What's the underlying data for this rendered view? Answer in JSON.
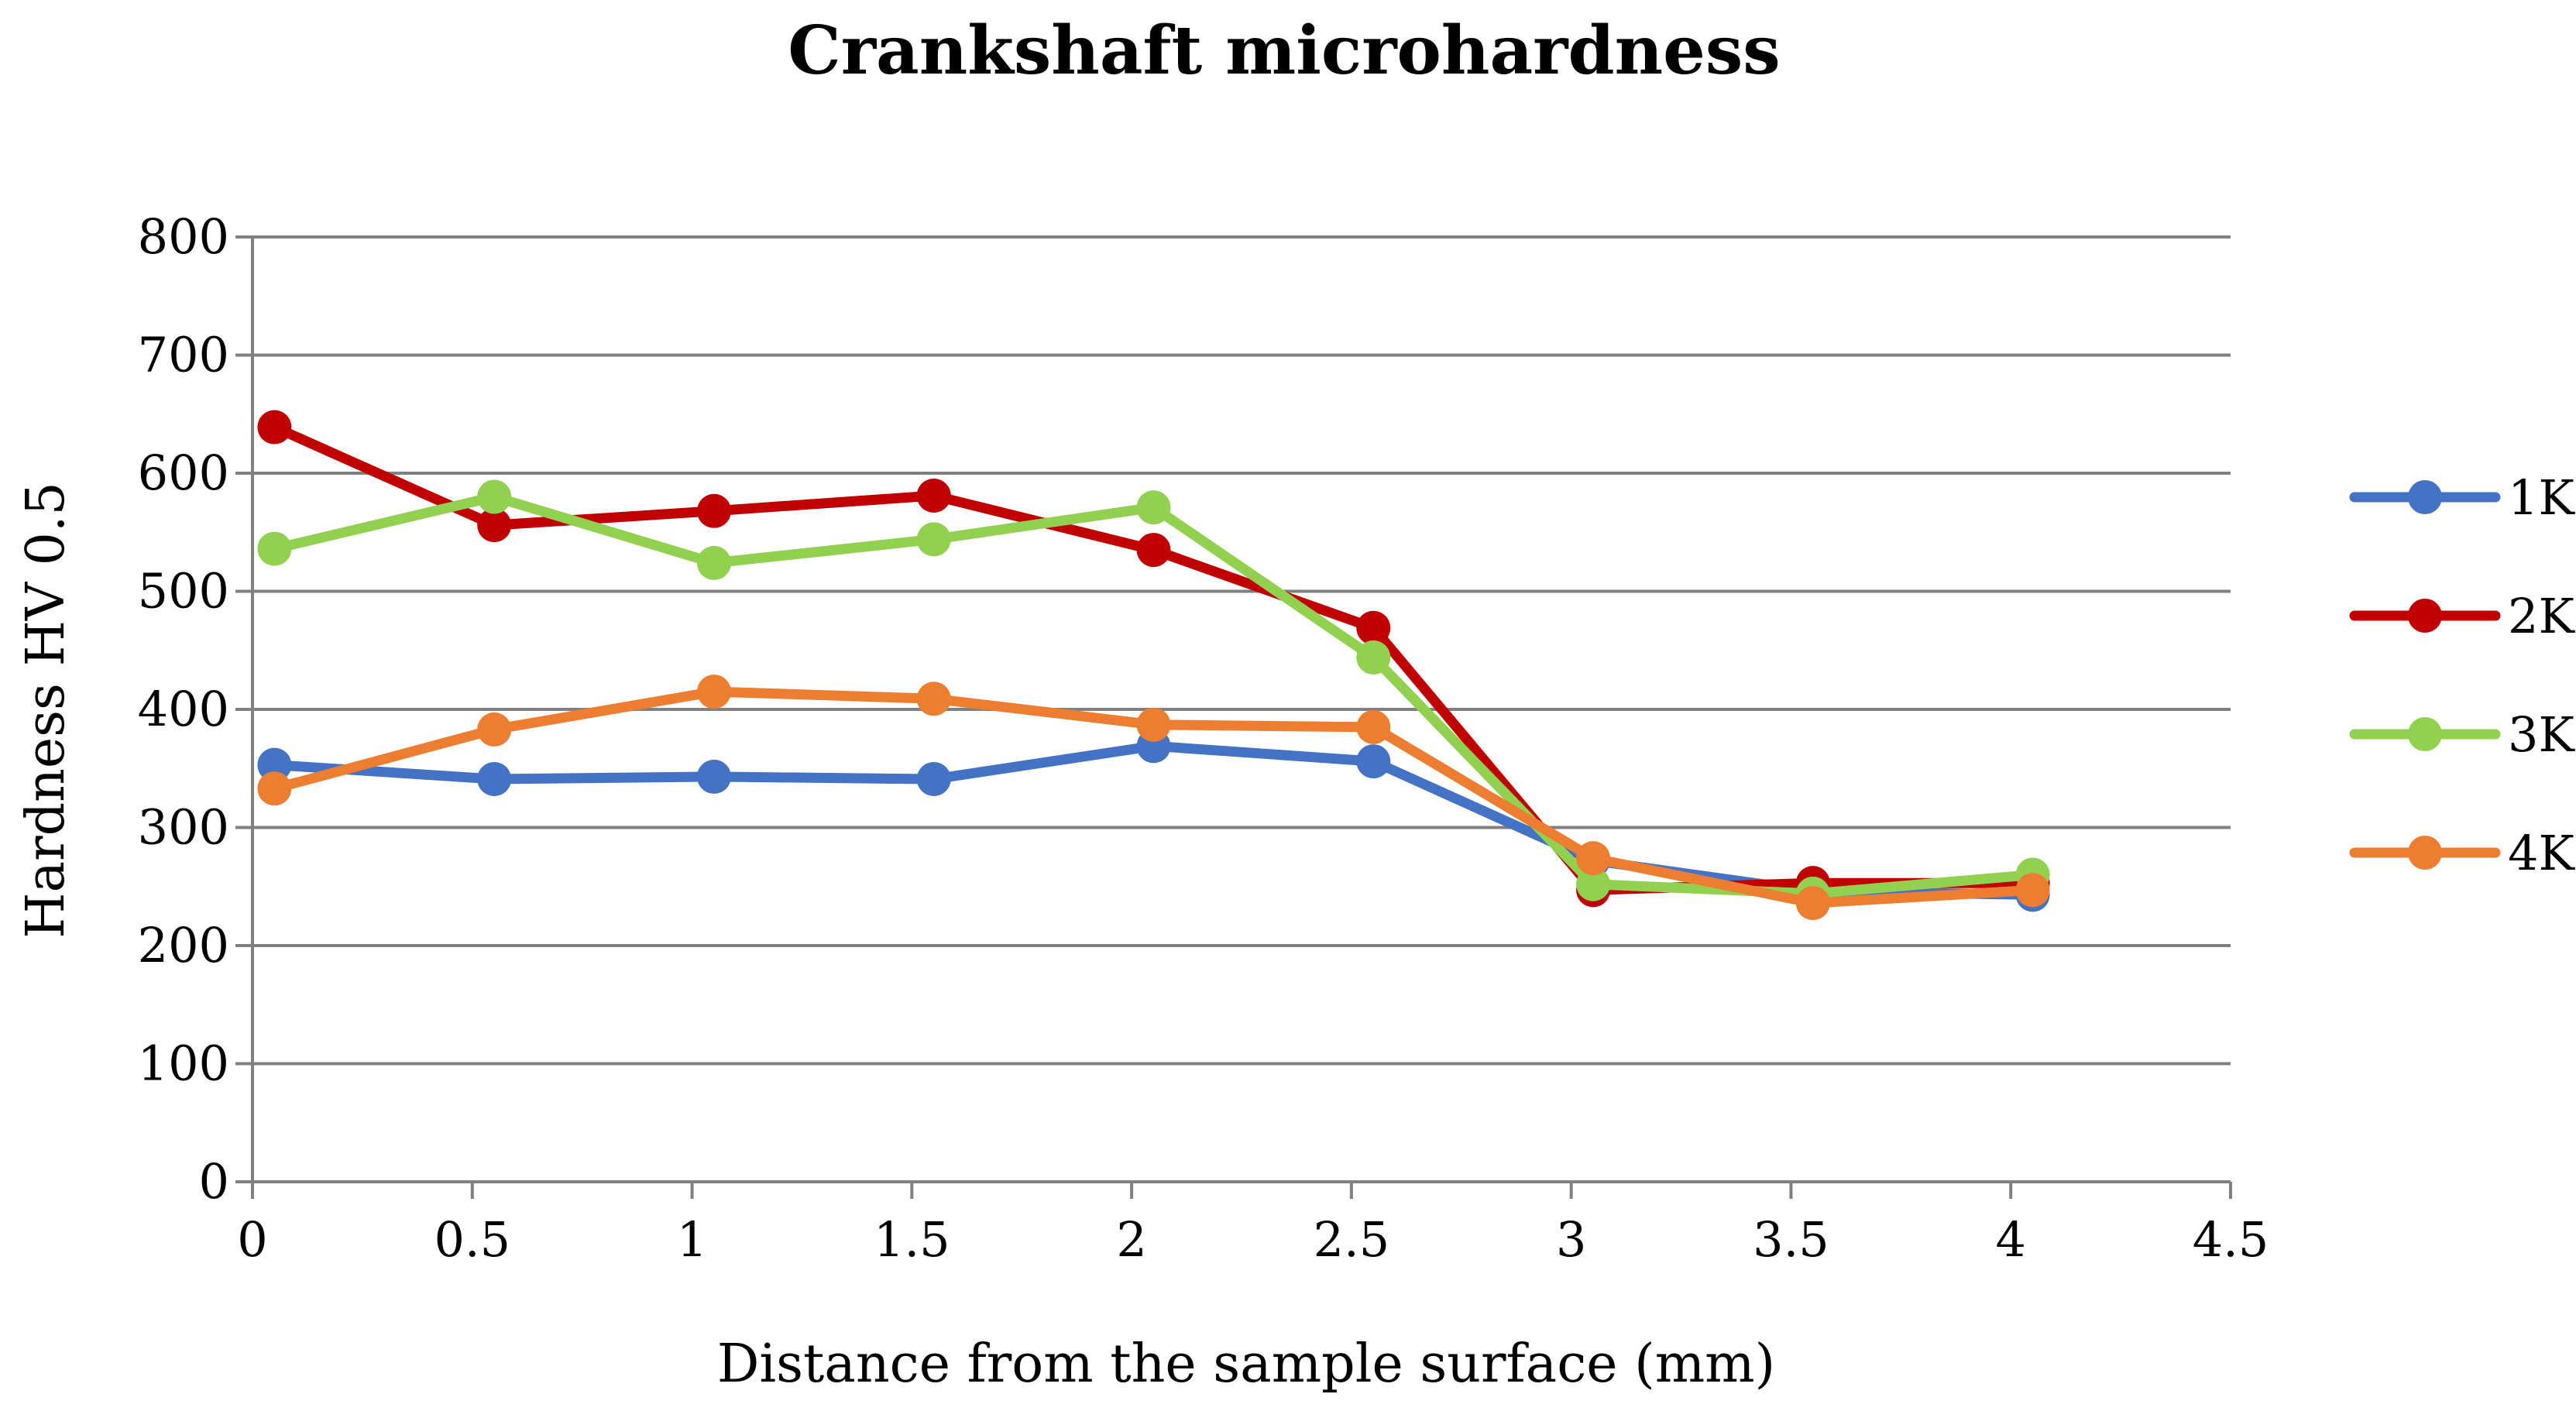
{
  "chart_data": {
    "type": "line",
    "title": "Crankshaft microhardness",
    "xlabel": "Distance from the sample surface (mm)",
    "ylabel": "Hardness HV 0.5",
    "xlim": [
      0,
      4.5
    ],
    "ylim": [
      0,
      800
    ],
    "xticks": [
      0,
      0.5,
      1,
      1.5,
      2,
      2.5,
      3,
      3.5,
      4,
      4.5
    ],
    "xtick_labels": [
      "0",
      "0.5",
      "1",
      "1.5",
      "2",
      "2.5",
      "3",
      "3.5",
      "4",
      "4.5"
    ],
    "yticks": [
      0,
      100,
      200,
      300,
      400,
      500,
      600,
      700,
      800
    ],
    "ytick_labels": [
      "0",
      "100",
      "200",
      "300",
      "400",
      "500",
      "600",
      "700",
      "800"
    ],
    "grid": "horizontal",
    "legend_position": "right",
    "x": [
      0.05,
      0.55,
      1.05,
      1.55,
      2.05,
      2.55,
      3.05,
      3.55,
      4.05
    ],
    "series": [
      {
        "name": "1K",
        "color": "#4472C4",
        "values": [
          353,
          341,
          343,
          341,
          369,
          356,
          272,
          246,
          243
        ]
      },
      {
        "name": "2K",
        "color": "#C00000",
        "values": [
          639,
          556,
          568,
          581,
          535,
          469,
          247,
          253,
          253
        ]
      },
      {
        "name": "3K",
        "color": "#92D050",
        "values": [
          536,
          580,
          524,
          544,
          571,
          444,
          252,
          244,
          260
        ]
      },
      {
        "name": "4K",
        "color": "#ED7D31",
        "values": [
          333,
          383,
          415,
          409,
          387,
          385,
          274,
          236,
          247
        ]
      }
    ]
  }
}
